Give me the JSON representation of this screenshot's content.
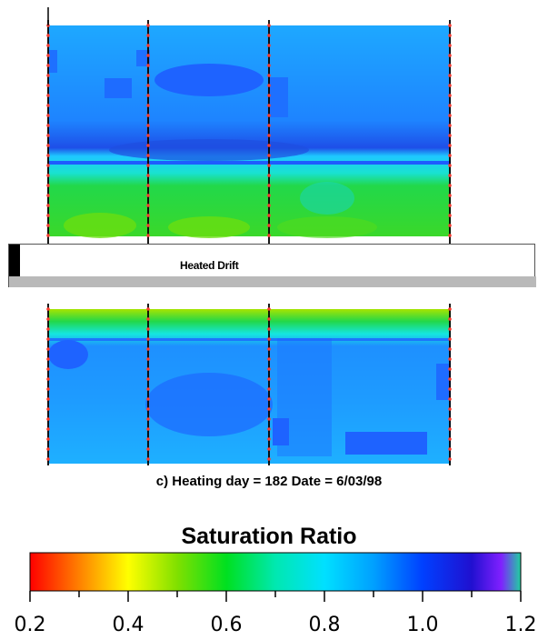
{
  "caption": "c) Heating day = 182 Date = 6/03/98",
  "drift_label": "Heated Drift",
  "colorbar": {
    "title": "Saturation Ratio",
    "ticks": [
      "0.2",
      "0.4",
      "0.6",
      "0.8",
      "1.0",
      "1.2"
    ],
    "range": [
      0.2,
      1.2
    ],
    "stops": [
      {
        "v": 0.2,
        "color": "#ff0000"
      },
      {
        "v": 0.3,
        "color": "#ff8000"
      },
      {
        "v": 0.4,
        "color": "#ffff00"
      },
      {
        "v": 0.5,
        "color": "#80e000"
      },
      {
        "v": 0.6,
        "color": "#00e020"
      },
      {
        "v": 0.7,
        "color": "#00e8b0"
      },
      {
        "v": 0.8,
        "color": "#00e0ff"
      },
      {
        "v": 0.9,
        "color": "#00a0ff"
      },
      {
        "v": 1.0,
        "color": "#0040ff"
      },
      {
        "v": 1.1,
        "color": "#2010d0"
      },
      {
        "v": 1.16,
        "color": "#8020ff"
      },
      {
        "v": 1.2,
        "color": "#20d0a0"
      }
    ]
  },
  "colors": {
    "wet_blue": "#1e63ff",
    "mid_blue": "#1e8bff",
    "light_blue": "#1ec0ff",
    "cyan": "#15e6e0",
    "green": "#22d84a",
    "yellow_green": "#a6e400",
    "borehole_line": "#000000",
    "sensor_dot": "#ff3b2f"
  }
}
